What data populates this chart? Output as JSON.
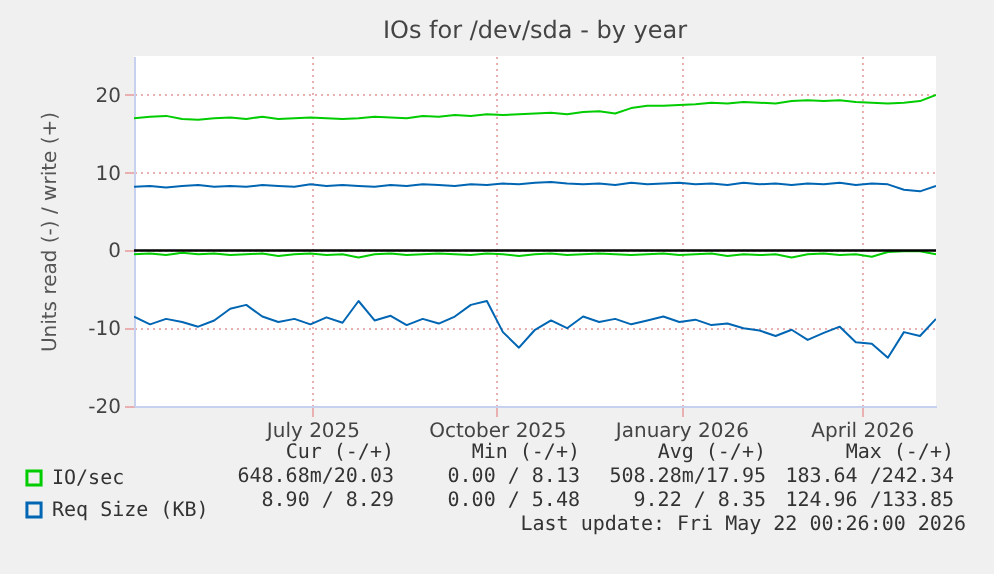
{
  "chart_data": {
    "type": "line",
    "title": "IOs for /dev/sda - by year",
    "ylabel": "Units read (-) / write (+)",
    "x": [
      "2025-04-17",
      "2025-04-25",
      "2025-05-03",
      "2025-05-11",
      "2025-05-19",
      "2025-05-27",
      "2025-06-04",
      "2025-06-12",
      "2025-06-20",
      "2025-06-28",
      "2025-07-06",
      "2025-07-14",
      "2025-07-22",
      "2025-07-30",
      "2025-08-07",
      "2025-08-15",
      "2025-08-23",
      "2025-08-31",
      "2025-09-08",
      "2025-09-16",
      "2025-09-24",
      "2025-10-02",
      "2025-10-10",
      "2025-10-18",
      "2025-10-26",
      "2025-11-03",
      "2025-11-11",
      "2025-11-19",
      "2025-11-27",
      "2025-12-05",
      "2025-12-13",
      "2025-12-21",
      "2025-12-29",
      "2026-01-06",
      "2026-01-14",
      "2026-01-22",
      "2026-01-30",
      "2026-02-07",
      "2026-02-15",
      "2026-02-23",
      "2026-03-03",
      "2026-03-11",
      "2026-03-19",
      "2026-03-27",
      "2026-04-04",
      "2026-04-12",
      "2026-04-20",
      "2026-04-28",
      "2026-05-06",
      "2026-05-14",
      "2026-05-22"
    ],
    "series": [
      {
        "name": "IO/sec",
        "color": "#00cc00",
        "values": [
          17.0,
          17.2,
          17.3,
          16.9,
          16.8,
          17.0,
          17.1,
          16.9,
          17.2,
          16.9,
          17.0,
          17.1,
          17.0,
          16.9,
          17.0,
          17.2,
          17.1,
          17.0,
          17.3,
          17.2,
          17.4,
          17.3,
          17.5,
          17.4,
          17.5,
          17.6,
          17.7,
          17.5,
          17.8,
          17.9,
          17.6,
          18.3,
          18.6,
          18.6,
          18.7,
          18.8,
          19.0,
          18.9,
          19.1,
          19.0,
          18.9,
          19.2,
          19.3,
          19.2,
          19.3,
          19.1,
          19.0,
          18.9,
          19.0,
          19.2,
          20.0
        ]
      },
      {
        "color": "#00cc00",
        "values": [
          -0.5,
          -0.4,
          -0.6,
          -0.3,
          -0.5,
          -0.4,
          -0.6,
          -0.5,
          -0.4,
          -0.7,
          -0.5,
          -0.4,
          -0.6,
          -0.5,
          -0.9,
          -0.5,
          -0.4,
          -0.6,
          -0.5,
          -0.4,
          -0.5,
          -0.6,
          -0.4,
          -0.5,
          -0.7,
          -0.5,
          -0.4,
          -0.6,
          -0.5,
          -0.4,
          -0.5,
          -0.6,
          -0.5,
          -0.4,
          -0.6,
          -0.5,
          -0.4,
          -0.7,
          -0.5,
          -0.6,
          -0.5,
          -0.9,
          -0.5,
          -0.4,
          -0.6,
          -0.5,
          -0.8,
          -0.2,
          -0.1,
          -0.1,
          -0.5
        ]
      },
      {
        "name": "Req Size (KB)",
        "color": "#0066b3",
        "values": [
          8.2,
          8.3,
          8.1,
          8.3,
          8.4,
          8.2,
          8.3,
          8.2,
          8.4,
          8.3,
          8.2,
          8.5,
          8.3,
          8.4,
          8.3,
          8.2,
          8.4,
          8.3,
          8.5,
          8.4,
          8.3,
          8.5,
          8.4,
          8.6,
          8.5,
          8.7,
          8.8,
          8.6,
          8.5,
          8.6,
          8.4,
          8.7,
          8.5,
          8.6,
          8.7,
          8.5,
          8.6,
          8.4,
          8.7,
          8.5,
          8.6,
          8.4,
          8.6,
          8.5,
          8.7,
          8.4,
          8.6,
          8.5,
          7.8,
          7.6,
          8.3
        ]
      },
      {
        "color": "#0066b3",
        "values": [
          -8.5,
          -9.5,
          -8.8,
          -9.2,
          -9.8,
          -9.0,
          -7.5,
          -7.0,
          -8.5,
          -9.2,
          -8.8,
          -9.5,
          -8.6,
          -9.3,
          -6.5,
          -9.0,
          -8.4,
          -9.6,
          -8.8,
          -9.4,
          -8.5,
          -7.0,
          -6.5,
          -10.5,
          -12.5,
          -10.2,
          -9.0,
          -10.0,
          -8.5,
          -9.2,
          -8.8,
          -9.5,
          -9.0,
          -8.5,
          -9.2,
          -8.9,
          -9.6,
          -9.4,
          -10.0,
          -10.3,
          -11.0,
          -10.2,
          -11.5,
          -10.6,
          -9.8,
          -11.8,
          -12.0,
          -13.8,
          -10.5,
          -11.0,
          -8.8
        ]
      }
    ],
    "xlim": [
      "2025-04-17",
      "2026-05-22"
    ],
    "xticks": [
      {
        "value": "2025-07-15",
        "label": "July 2025"
      },
      {
        "value": "2025-10-15",
        "label": "October 2025"
      },
      {
        "value": "2026-01-15",
        "label": "January 2026"
      },
      {
        "value": "2026-04-15",
        "label": "April 2026"
      }
    ],
    "ylim": [
      -20,
      25
    ],
    "yticks": [
      -20,
      -10,
      0,
      10,
      20
    ],
    "ref_lines": [
      {
        "axis": "y",
        "value": 0,
        "color": "#000000"
      }
    ],
    "grid": true,
    "legend": "bottom left",
    "line_style": "solid",
    "annotations": [
      "Cur (-/+)",
      "Min (-/+)",
      "Avg (-/+)",
      "Max (-/+)",
      "648.68m/20.03",
      "0.00 / 8.13",
      "508.28m/17.95",
      "183.64 /242.34",
      "8.90 / 8.29",
      "0.00 / 5.48",
      "9.22 / 8.35",
      "124.96 /133.85",
      "Last update: Fri May 22 00:26:00 2026"
    ]
  }
}
